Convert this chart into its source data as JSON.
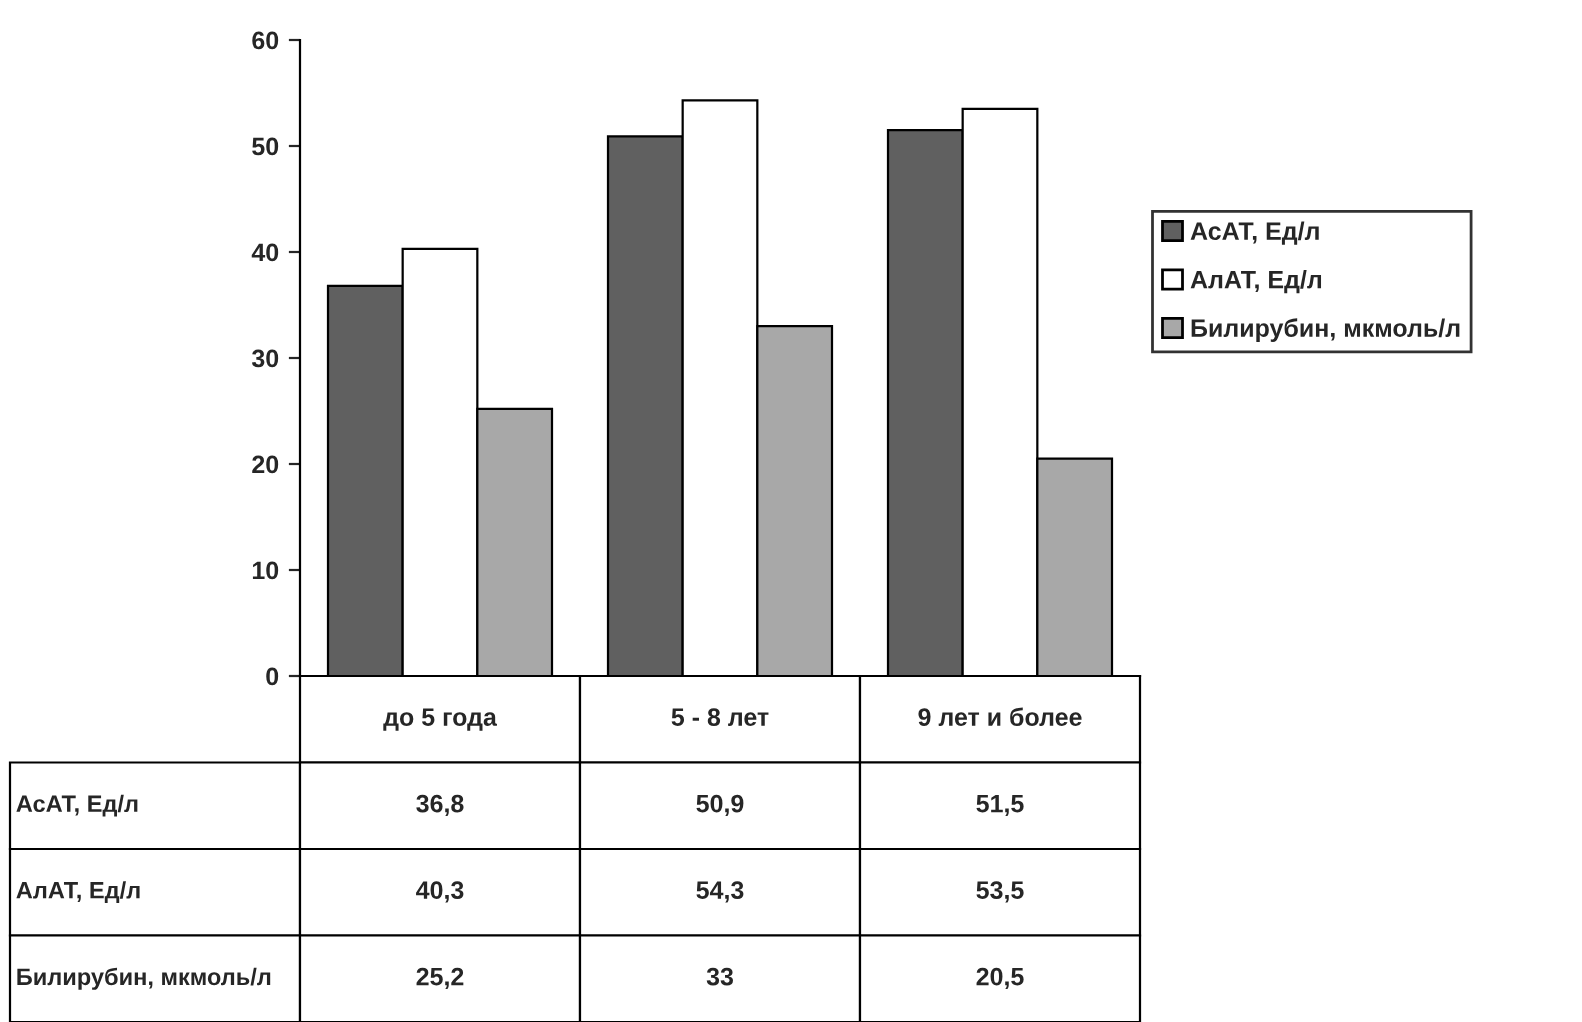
{
  "chart_data": {
    "type": "bar",
    "categories": [
      "до 5 года",
      "5 - 8 лет",
      "9 лет и более"
    ],
    "series": [
      {
        "name": "АсАТ, Ед/л",
        "color": "#606060",
        "values": [
          36.8,
          50.9,
          51.5
        ],
        "value_labels": [
          "36,8",
          "50,9",
          "51,5"
        ]
      },
      {
        "name": "АлАТ, Ед/л",
        "color": "#ffffff",
        "values": [
          40.3,
          54.3,
          53.5
        ],
        "value_labels": [
          "40,3",
          "54,3",
          "53,5"
        ]
      },
      {
        "name": "Билирубин, мкмоль/л",
        "color": "#a8a8a8",
        "values": [
          25.2,
          33,
          20.5
        ],
        "value_labels": [
          "25,2",
          "33",
          "20,5"
        ]
      }
    ],
    "ylim": [
      0,
      60
    ],
    "yticks": [
      0,
      10,
      20,
      30,
      40,
      50,
      60
    ],
    "grid": false,
    "legend": "right"
  }
}
